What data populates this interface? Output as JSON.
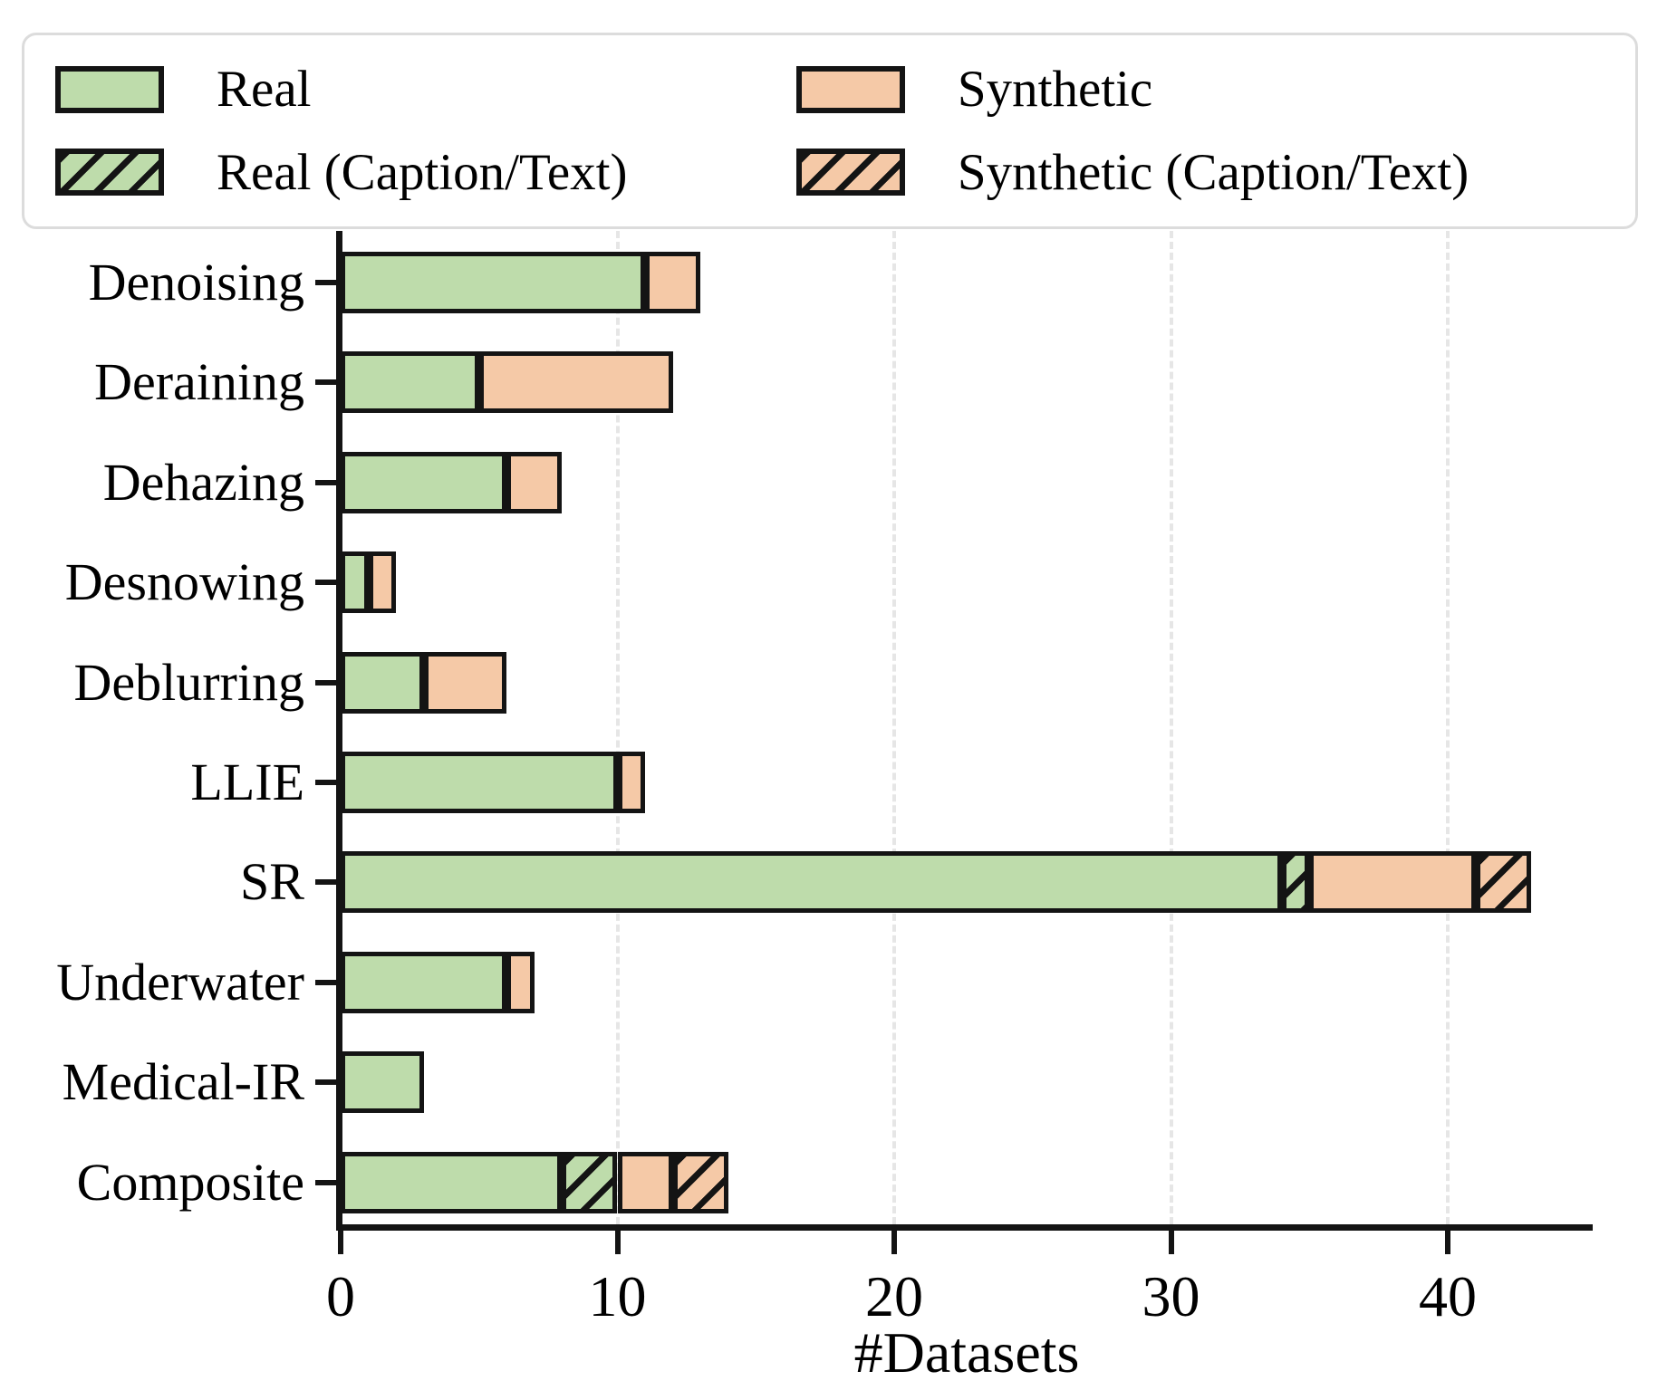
{
  "chart_data": {
    "type": "bar",
    "orientation": "horizontal",
    "stacked": true,
    "title": "",
    "xlabel": "#Datasets",
    "ylabel": "",
    "xlim": [
      0,
      45
    ],
    "xticks": [
      0,
      10,
      20,
      30,
      40
    ],
    "grid": "vertical dashed gridlines at x ticks",
    "legend_position": "top",
    "categories": [
      "Denoising",
      "Deraining",
      "Dehazing",
      "Desnowing",
      "Deblurring",
      "LLIE",
      "SR",
      "Underwater",
      "Medical-IR",
      "Composite"
    ],
    "series": [
      {
        "name": "Real",
        "hatch": false,
        "color": "#bedcab",
        "values": [
          11,
          5,
          6,
          1,
          3,
          10,
          34,
          6,
          3,
          8
        ]
      },
      {
        "name": "Real (Caption/Text)",
        "hatch": true,
        "color": "#bedcab",
        "values": [
          0,
          0,
          0,
          0,
          0,
          0,
          1,
          0,
          0,
          2
        ]
      },
      {
        "name": "Synthetic",
        "hatch": false,
        "color": "#f5c9a7",
        "values": [
          2,
          7,
          2,
          1,
          3,
          1,
          6,
          1,
          0,
          2
        ]
      },
      {
        "name": "Synthetic (Caption/Text)",
        "hatch": true,
        "color": "#f5c9a7",
        "values": [
          0,
          0,
          0,
          0,
          0,
          0,
          2,
          0,
          0,
          2
        ]
      }
    ]
  },
  "legend": {
    "items": [
      {
        "label": "Real",
        "swatch": "real-solid"
      },
      {
        "label": "Real (Caption/Text)",
        "swatch": "real-hatched"
      },
      {
        "label": "Synthetic",
        "swatch": "synthetic-solid"
      },
      {
        "label": "Synthetic (Caption/Text)",
        "swatch": "synthetic-hatched"
      }
    ]
  },
  "colors": {
    "real_fill": "#bedcab",
    "synthetic_fill": "#f5c9a7",
    "bar_edge": "#141414",
    "axis": "#141414",
    "gridline": "#e6e6e6",
    "legend_border": "#dcdcdc",
    "background": "#ffffff",
    "text": "#000000"
  }
}
